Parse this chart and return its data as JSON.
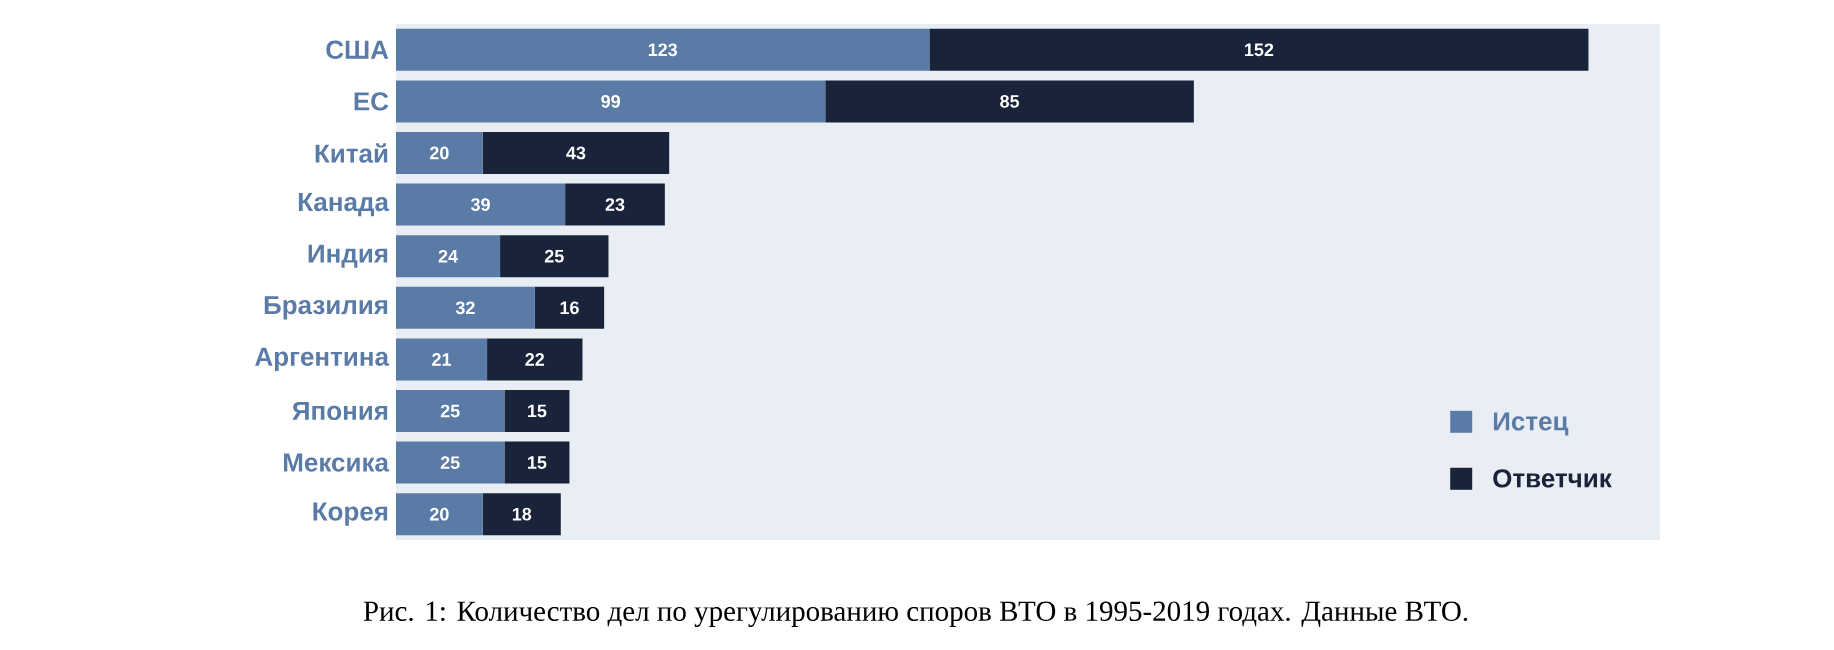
{
  "chart_data": {
    "type": "bar",
    "orientation": "horizontal",
    "stacked": true,
    "data_labels": true,
    "legend": "bottom right",
    "categories": [
      "США",
      "ЕС",
      "Китай",
      "Канада",
      "Индия",
      "Бразилия",
      "Аргентина",
      "Япония",
      "Мексика",
      "Корея"
    ],
    "series": [
      {
        "name": "Истец",
        "color": "#5a7ba6",
        "values": [
          123,
          99,
          20,
          39,
          24,
          32,
          21,
          25,
          25,
          20
        ]
      },
      {
        "name": "Ответчик",
        "color": "#19243a",
        "values": [
          152,
          85,
          43,
          23,
          25,
          16,
          22,
          15,
          15,
          18
        ]
      }
    ],
    "annotations": [
      "Рис. 1: Количество дел по урегулированию споров ВТО в 1995-2019 годах. Данные ВТО."
    ]
  }
}
